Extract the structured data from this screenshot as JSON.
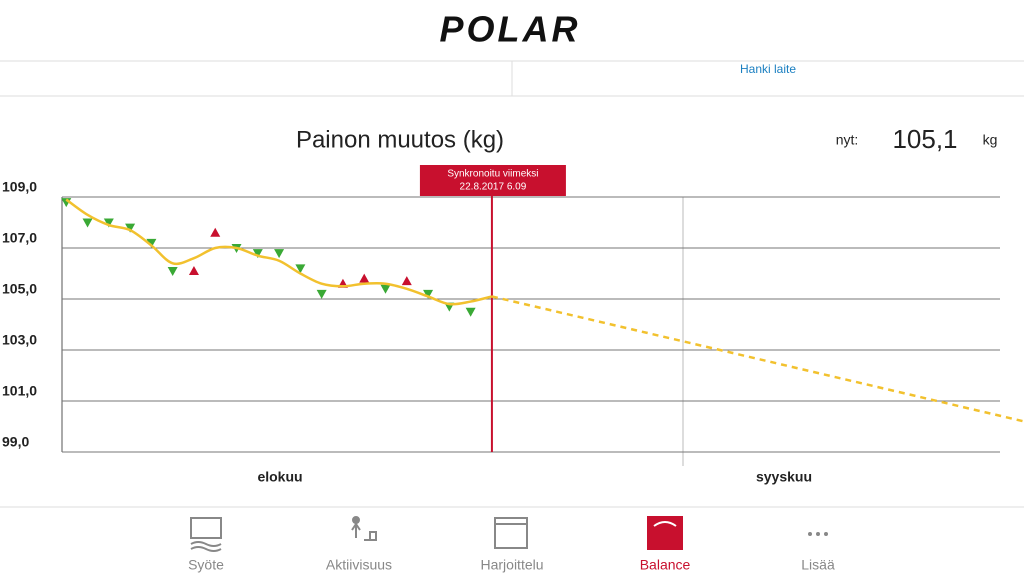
{
  "header": {
    "logo": "POLAR",
    "link": "Hanki laite"
  },
  "chart_data": {
    "type": "scatter",
    "title": "Painon muutos (kg)",
    "current_label": "nyt:",
    "current_value": "105,1",
    "unit": "kg",
    "sync_label": [
      "Synkronoitu viimeksi",
      "22.8.2017 6.09"
    ],
    "sync_x": 20,
    "months": [
      "elokuu",
      "syyskuu"
    ],
    "xlim": [
      -0.2,
      45
    ],
    "ylim": [
      99,
      109
    ],
    "yticks": [
      {
        "value": 109,
        "label": "109,0"
      },
      {
        "value": 107,
        "label": "107,0"
      },
      {
        "value": 105,
        "label": "105,0"
      },
      {
        "value": 103,
        "label": "103,0"
      },
      {
        "value": 101,
        "label": "101,0"
      },
      {
        "value": 99,
        "label": "99,0"
      }
    ],
    "grid": true,
    "measurements": {
      "x": [
        0,
        1,
        2,
        3,
        4,
        5,
        6,
        7,
        8,
        9,
        10,
        11,
        12,
        13,
        14,
        15,
        16,
        17,
        18,
        19
      ],
      "values": [
        108.8,
        108.0,
        108.0,
        107.8,
        107.2,
        106.1,
        106.1,
        107.6,
        107.0,
        106.8,
        106.8,
        106.2,
        105.2,
        105.6,
        105.8,
        105.4,
        105.7,
        105.2,
        104.7,
        104.5
      ],
      "directions": [
        "down",
        "down",
        "down",
        "down",
        "down",
        "down",
        "up",
        "up",
        "down",
        "down",
        "down",
        "down",
        "down",
        "up",
        "up",
        "down",
        "up",
        "down",
        "down",
        "down"
      ],
      "colors": {
        "down": "#3aa935",
        "up": "#c8102e"
      }
    },
    "trend": {
      "color": "#f2c12e",
      "x": [
        0,
        1,
        2,
        3,
        4,
        5,
        6,
        7,
        8,
        9,
        10,
        11,
        12,
        13,
        14,
        15,
        16,
        17,
        18,
        19,
        20
      ],
      "values": [
        108.9,
        108.3,
        107.9,
        107.7,
        107.1,
        106.4,
        106.6,
        107.0,
        107.0,
        106.7,
        106.5,
        106.0,
        105.6,
        105.5,
        105.6,
        105.6,
        105.4,
        105.1,
        104.8,
        104.9,
        105.1
      ]
    },
    "forecast": {
      "color": "#f2c12e",
      "x": [
        20,
        45
      ],
      "values": [
        105.1,
        100.2
      ]
    }
  },
  "nav": {
    "items": [
      "Syöte",
      "Aktiivisuus",
      "Harjoittelu",
      "Balance",
      "Lisää"
    ],
    "active": 3
  }
}
